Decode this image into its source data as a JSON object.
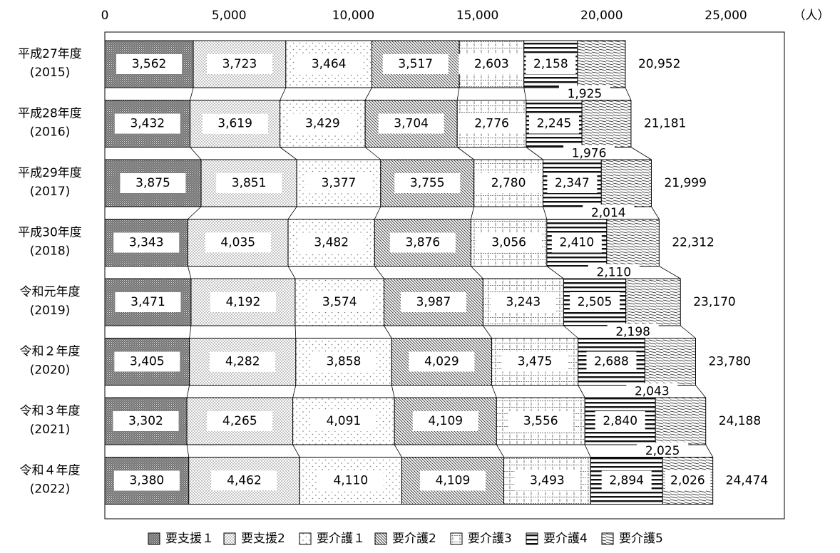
{
  "chart_data": {
    "type": "bar",
    "orientation": "horizontal",
    "stacked": true,
    "unit": "（人）",
    "x_ticks": [
      "0",
      "5,000",
      "10,000",
      "15,000",
      "20,000",
      "25,000"
    ],
    "x_tick_values": [
      0,
      5000,
      10000,
      15000,
      20000,
      25000
    ],
    "xlim": [
      0,
      28000
    ],
    "categories": [
      {
        "era": "平成27年度",
        "year": "(2015)"
      },
      {
        "era": "平成28年度",
        "year": "(2016)"
      },
      {
        "era": "平成29年度",
        "year": "(2017)"
      },
      {
        "era": "平成30年度",
        "year": "(2018)"
      },
      {
        "era": "令和元年度",
        "year": "(2019)"
      },
      {
        "era": "令和２年度",
        "year": "(2020)"
      },
      {
        "era": "令和３年度",
        "year": "(2021)"
      },
      {
        "era": "令和４年度",
        "year": "(2022)"
      }
    ],
    "series": [
      {
        "name": "要支援１",
        "values": [
          3562,
          3432,
          3875,
          3343,
          3471,
          3405,
          3302,
          3380
        ],
        "labels": [
          "3,562",
          "3,432",
          "3,875",
          "3,343",
          "3,471",
          "3,405",
          "3,302",
          "3,380"
        ]
      },
      {
        "name": "要支援2",
        "values": [
          3723,
          3619,
          3851,
          4035,
          4192,
          4282,
          4265,
          4462
        ],
        "labels": [
          "3,723",
          "3,619",
          "3,851",
          "4,035",
          "4,192",
          "4,282",
          "4,265",
          "4,462"
        ]
      },
      {
        "name": "要介護１",
        "values": [
          3464,
          3429,
          3377,
          3482,
          3574,
          3858,
          4091,
          4110
        ],
        "labels": [
          "3,464",
          "3,429",
          "3,377",
          "3,482",
          "3,574",
          "3,858",
          "4,091",
          "4,110"
        ]
      },
      {
        "name": "要介護2",
        "values": [
          3517,
          3704,
          3755,
          3876,
          3987,
          4029,
          4109,
          4109
        ],
        "labels": [
          "3,517",
          "3,704",
          "3,755",
          "3,876",
          "3,987",
          "4,029",
          "4,109",
          "4,109"
        ]
      },
      {
        "name": "要介護3",
        "values": [
          2603,
          2776,
          2780,
          3056,
          3243,
          3475,
          3556,
          3493
        ],
        "labels": [
          "2,603",
          "2,776",
          "2,780",
          "3,056",
          "3,243",
          "3,475",
          "3,556",
          "3,493"
        ]
      },
      {
        "name": "要介護4",
        "values": [
          2158,
          2245,
          2347,
          2410,
          2505,
          2688,
          2840,
          2894
        ],
        "labels": [
          "2,158",
          "2,245",
          "2,347",
          "2,410",
          "2,505",
          "2,688",
          "2,840",
          "2,894"
        ]
      },
      {
        "name": "要介護5",
        "values": [
          1925,
          1976,
          2014,
          2110,
          2198,
          2043,
          2025,
          2026
        ],
        "labels": [
          "1,925",
          "1,976",
          "2,014",
          "2,110",
          "2,198",
          "2,043",
          "2,025",
          "2,026"
        ]
      }
    ],
    "totals": [
      "20,952",
      "21,181",
      "21,999",
      "22,312",
      "23,170",
      "23,780",
      "24,188",
      "24,474"
    ],
    "legend_position": "bottom",
    "grid": false
  }
}
